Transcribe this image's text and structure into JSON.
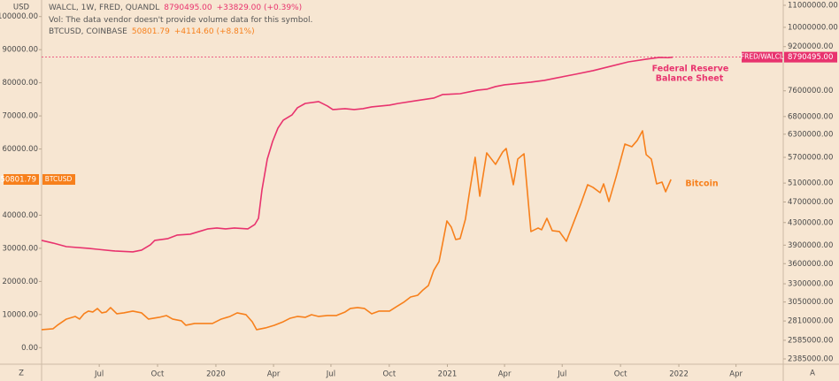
{
  "chart_data": {
    "type": "line",
    "yaxis_label": "USD",
    "headers": [
      {
        "title": "WALCL, 1W, FRED, QUANDL",
        "last": "8790495.00",
        "change": "+33829.00 (+0.39%)"
      },
      {
        "note": "Vol: The data vendor doesn't provide volume data for this symbol."
      },
      {
        "title": "BTCUSD, COINBASE",
        "last": "50801.79",
        "change": "+4114.60 (+8.81%)"
      }
    ],
    "annotations": [
      [
        "Federal Reserve",
        "Balance Sheet"
      ],
      [
        "Bitcoin"
      ]
    ],
    "xlim": [
      2019.247,
      2022.451
    ],
    "xticks": [
      {
        "value": 2019.496,
        "label": "Jul"
      },
      {
        "value": 2019.748,
        "label": "Oct"
      },
      {
        "value": 2020,
        "label": "2020"
      },
      {
        "value": 2020.249,
        "label": "Apr"
      },
      {
        "value": 2020.497,
        "label": "Jul"
      },
      {
        "value": 2020.749,
        "label": "Oct"
      },
      {
        "value": 2021,
        "label": "2021"
      },
      {
        "value": 2021.247,
        "label": "Apr"
      },
      {
        "value": 2021.496,
        "label": "Jul"
      },
      {
        "value": 2021.748,
        "label": "Oct"
      },
      {
        "value": 2022,
        "label": "2022"
      },
      {
        "value": 2022.247,
        "label": "Apr"
      }
    ],
    "ylim": [
      -5000,
      105000
    ],
    "yticks": [
      {
        "value": 100000,
        "label": "100000.00"
      },
      {
        "value": 90000,
        "label": "90000.00"
      },
      {
        "value": 80000,
        "label": "80000.00"
      },
      {
        "value": 70000,
        "label": "70000.00"
      },
      {
        "value": 60000,
        "label": "60000.00"
      },
      {
        "value": 40000,
        "label": "40000.00"
      },
      {
        "value": 30000,
        "label": "30000.00"
      },
      {
        "value": 20000,
        "label": "20000.00"
      },
      {
        "value": 10000,
        "label": "10000.00"
      },
      {
        "value": 0,
        "label": "0.00"
      }
    ],
    "y2lim": [
      2331000,
      11254000
    ],
    "y2log": true,
    "y2ticks": [
      {
        "value": 11000000,
        "label": "11000000.00"
      },
      {
        "value": 10000000,
        "label": "10000000.00"
      },
      {
        "value": 9200000,
        "label": "9200000.00"
      },
      {
        "value": 7600000,
        "label": "7600000.00"
      },
      {
        "value": 6800000,
        "label": "6800000.00"
      },
      {
        "value": 6300000,
        "label": "6300000.00"
      },
      {
        "value": 5700000,
        "label": "5700000.00"
      },
      {
        "value": 5100000,
        "label": "5100000.00"
      },
      {
        "value": 4700000,
        "label": "4700000.00"
      },
      {
        "value": 4300000,
        "label": "4300000.00"
      },
      {
        "value": 3900000,
        "label": "3900000.00"
      },
      {
        "value": 3600000,
        "label": "3600000.00"
      },
      {
        "value": 3300000,
        "label": "3300000.00"
      },
      {
        "value": 3050000,
        "label": "3050000.00"
      },
      {
        "value": 2810000,
        "label": "2810000.00"
      },
      {
        "value": 2585000,
        "label": "2585000.00"
      },
      {
        "value": 2385000,
        "label": "2385000.00"
      }
    ],
    "grid": false,
    "series": [
      {
        "name": "FRED/WALCL",
        "axis": "y2",
        "color": "#e8336e",
        "x": [
          2019.247,
          2019.296,
          2019.354,
          2019.449,
          2019.488,
          2019.564,
          2019.641,
          2019.679,
          2019.717,
          2019.736,
          2019.793,
          2019.832,
          2019.889,
          2019.927,
          2019.966,
          2020.004,
          2020.042,
          2020.08,
          2020.138,
          2020.168,
          2020.184,
          2020.199,
          2020.222,
          2020.245,
          2020.268,
          2020.291,
          2020.329,
          2020.352,
          2020.386,
          2020.444,
          2020.482,
          2020.505,
          2020.558,
          2020.597,
          2020.635,
          2020.673,
          2020.711,
          2020.75,
          2020.788,
          2020.864,
          2020.941,
          2020.979,
          2021.055,
          2021.094,
          2021.132,
          2021.17,
          2021.208,
          2021.247,
          2021.285,
          2021.361,
          2021.419,
          2021.476,
          2021.553,
          2021.629,
          2021.706,
          2021.782,
          2021.859,
          2021.916,
          2021.954,
          2021.973
        ],
        "values": [
          3981000,
          3936000,
          3875000,
          3846000,
          3831000,
          3802000,
          3788000,
          3817000,
          3905000,
          3981000,
          4012000,
          4073000,
          4089000,
          4136000,
          4184000,
          4200000,
          4184000,
          4200000,
          4184000,
          4264000,
          4381000,
          4950000,
          5657000,
          6106000,
          6468000,
          6695000,
          6850000,
          7061000,
          7197000,
          7253000,
          7116000,
          7008000,
          7035000,
          7008000,
          7035000,
          7089000,
          7116000,
          7143000,
          7197000,
          7281000,
          7365000,
          7478000,
          7506000,
          7564000,
          7622000,
          7651000,
          7740000,
          7799000,
          7829000,
          7889000,
          7950000,
          8041000,
          8164000,
          8291000,
          8451000,
          8613000,
          8713000,
          8780000,
          8770000,
          8790495
        ]
      },
      {
        "name": "BTCUSD",
        "color": "#f7801c",
        "x": [
          2019.247,
          2019.296,
          2019.315,
          2019.354,
          2019.392,
          2019.411,
          2019.43,
          2019.449,
          2019.468,
          2019.488,
          2019.507,
          2019.526,
          2019.545,
          2019.572,
          2019.602,
          2019.641,
          2019.679,
          2019.709,
          2019.755,
          2019.786,
          2019.813,
          2019.851,
          2019.87,
          2019.908,
          2019.946,
          2019.985,
          2020.023,
          2020.061,
          2020.092,
          2020.13,
          2020.157,
          2020.176,
          2020.214,
          2020.252,
          2020.291,
          2020.321,
          2020.352,
          2020.386,
          2020.413,
          2020.444,
          2020.482,
          2020.52,
          2020.558,
          2020.581,
          2020.612,
          2020.642,
          2020.673,
          2020.704,
          2020.75,
          2020.78,
          2020.811,
          2020.841,
          2020.872,
          2020.895,
          2020.918,
          2020.941,
          2020.964,
          2020.979,
          2020.998,
          2021.017,
          2021.036,
          2021.055,
          2021.078,
          2021.094,
          2021.12,
          2021.14,
          2021.17,
          2021.208,
          2021.239,
          2021.254,
          2021.285,
          2021.304,
          2021.331,
          2021.361,
          2021.392,
          2021.407,
          2021.43,
          2021.453,
          2021.484,
          2021.514,
          2021.545,
          2021.576,
          2021.606,
          2021.629,
          2021.66,
          2021.675,
          2021.698,
          2021.729,
          2021.767,
          2021.797,
          2021.82,
          2021.843,
          2021.859,
          2021.881,
          2021.904,
          2021.927,
          2021.943,
          2021.966
        ],
        "values": [
          5420,
          5687,
          6755,
          8625,
          9426,
          8625,
          10227,
          11028,
          10761,
          11829,
          10494,
          10761,
          12096,
          10227,
          10494,
          11028,
          10494,
          8625,
          9159,
          9693,
          8625,
          8091,
          6755,
          7290,
          7290,
          7290,
          8625,
          9426,
          10494,
          9960,
          7824,
          5420,
          5955,
          6755,
          7824,
          8892,
          9426,
          9159,
          9960,
          9426,
          9693,
          9693,
          10761,
          11829,
          12096,
          11829,
          10227,
          11028,
          11028,
          12363,
          13698,
          15300,
          15834,
          17436,
          18771,
          23311,
          25981,
          31321,
          38264,
          36395,
          32656,
          32924,
          38797,
          46274,
          57489,
          45741,
          58825,
          55353,
          59092,
          60160,
          49212,
          56955,
          58557,
          35060,
          36128,
          35594,
          39064,
          35327,
          35060,
          32122,
          37730,
          43337,
          49212,
          48411,
          46808,
          49479,
          44138,
          51615,
          61495,
          60694,
          62563,
          65500,
          58290,
          56955,
          49479,
          50013,
          47075,
          50801.79
        ]
      }
    ]
  },
  "toolbar": {
    "left": "Z",
    "right": "A"
  }
}
